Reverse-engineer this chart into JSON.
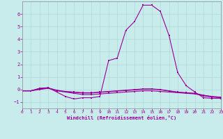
{
  "xlabel": "Windchill (Refroidissement éolien,°C)",
  "bg_color": "#c8ecec",
  "line_color": "#990099",
  "grid_color": "#aadddd",
  "xlim": [
    0,
    23
  ],
  "ylim": [
    -1.5,
    7.0
  ],
  "xticks": [
    0,
    1,
    2,
    3,
    4,
    5,
    6,
    7,
    8,
    9,
    10,
    11,
    12,
    13,
    14,
    15,
    16,
    17,
    18,
    19,
    20,
    21,
    22,
    23
  ],
  "yticks": [
    -1,
    0,
    1,
    2,
    3,
    4,
    5,
    6
  ],
  "series": [
    [
      0,
      -0.1
    ],
    [
      1,
      -0.1
    ],
    [
      2,
      0.1
    ],
    [
      3,
      0.15
    ],
    [
      4,
      -0.2
    ],
    [
      5,
      -0.55
    ],
    [
      6,
      -0.75
    ],
    [
      7,
      -0.65
    ],
    [
      8,
      -0.65
    ],
    [
      9,
      -0.55
    ],
    [
      10,
      2.3
    ],
    [
      11,
      2.5
    ],
    [
      12,
      4.7
    ],
    [
      13,
      5.4
    ],
    [
      14,
      6.7
    ],
    [
      15,
      6.7
    ],
    [
      16,
      6.2
    ],
    [
      17,
      4.3
    ],
    [
      18,
      1.35
    ],
    [
      19,
      0.3
    ],
    [
      20,
      -0.2
    ],
    [
      21,
      -0.65
    ],
    [
      22,
      -0.7
    ],
    [
      23,
      -0.7
    ]
  ],
  "series2": [
    [
      0,
      -0.1
    ],
    [
      1,
      -0.1
    ],
    [
      2,
      0.0
    ],
    [
      3,
      0.1
    ],
    [
      4,
      -0.1
    ],
    [
      5,
      -0.2
    ],
    [
      6,
      -0.3
    ],
    [
      7,
      -0.4
    ],
    [
      8,
      -0.4
    ],
    [
      9,
      -0.35
    ],
    [
      10,
      -0.3
    ],
    [
      11,
      -0.25
    ],
    [
      12,
      -0.2
    ],
    [
      13,
      -0.15
    ],
    [
      14,
      -0.1
    ],
    [
      15,
      -0.1
    ],
    [
      16,
      -0.15
    ],
    [
      17,
      -0.2
    ],
    [
      18,
      -0.25
    ],
    [
      19,
      -0.3
    ],
    [
      20,
      -0.35
    ],
    [
      21,
      -0.5
    ],
    [
      22,
      -0.6
    ],
    [
      23,
      -0.65
    ]
  ],
  "series3": [
    [
      0,
      -0.1
    ],
    [
      1,
      -0.1
    ],
    [
      2,
      0.05
    ],
    [
      3,
      0.12
    ],
    [
      4,
      -0.05
    ],
    [
      5,
      -0.15
    ],
    [
      6,
      -0.2
    ],
    [
      7,
      -0.25
    ],
    [
      8,
      -0.25
    ],
    [
      9,
      -0.2
    ],
    [
      10,
      -0.15
    ],
    [
      11,
      -0.1
    ],
    [
      12,
      -0.05
    ],
    [
      13,
      0.0
    ],
    [
      14,
      0.05
    ],
    [
      15,
      0.05
    ],
    [
      16,
      0.0
    ],
    [
      17,
      -0.1
    ],
    [
      18,
      -0.2
    ],
    [
      19,
      -0.25
    ],
    [
      20,
      -0.3
    ],
    [
      21,
      -0.45
    ],
    [
      22,
      -0.55
    ],
    [
      23,
      -0.6
    ]
  ],
  "series4": [
    [
      0,
      -0.1
    ],
    [
      1,
      -0.1
    ],
    [
      2,
      0.08
    ],
    [
      3,
      0.13
    ],
    [
      4,
      -0.08
    ],
    [
      5,
      -0.18
    ],
    [
      6,
      -0.22
    ],
    [
      7,
      -0.28
    ],
    [
      8,
      -0.28
    ],
    [
      9,
      -0.22
    ],
    [
      10,
      -0.18
    ],
    [
      11,
      -0.12
    ],
    [
      12,
      -0.08
    ],
    [
      13,
      -0.03
    ],
    [
      14,
      0.02
    ],
    [
      15,
      0.03
    ],
    [
      16,
      -0.02
    ],
    [
      17,
      -0.12
    ],
    [
      18,
      -0.22
    ],
    [
      19,
      -0.27
    ],
    [
      20,
      -0.32
    ],
    [
      21,
      -0.47
    ],
    [
      22,
      -0.57
    ],
    [
      23,
      -0.62
    ]
  ]
}
